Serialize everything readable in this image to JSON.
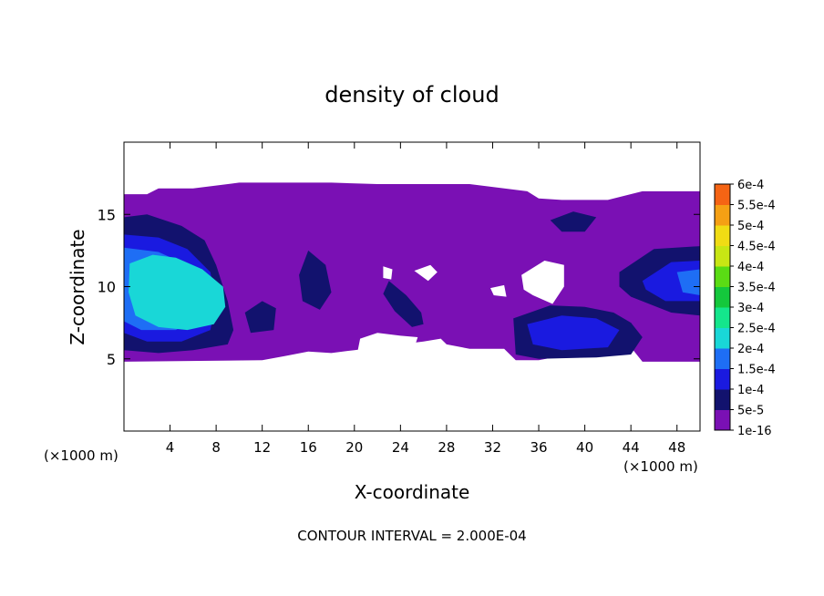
{
  "chart_data": {
    "type": "heatmap",
    "title": "density of cloud",
    "xlabel": "X-coordinate",
    "ylabel": "Z-coordinate",
    "x_unit_left": "(×1000 m)",
    "x_unit_right": "(×1000 m)",
    "footer": "CONTOUR INTERVAL = 2.000E-04",
    "xlim": [
      0,
      50
    ],
    "ylim": [
      0,
      20
    ],
    "x_ticks": [
      4,
      8,
      12,
      16,
      20,
      24,
      28,
      32,
      36,
      40,
      44,
      48
    ],
    "y_ticks": [
      5,
      10,
      15
    ],
    "legend_position": "right",
    "colorbar": {
      "labels": [
        "1e-16",
        "5e-5",
        "1e-4",
        "1.5e-4",
        "2e-4",
        "2.5e-4",
        "3e-4",
        "3.5e-4",
        "4e-4",
        "4.5e-4",
        "5e-4",
        "5.5e-4",
        "6e-4"
      ],
      "colors": [
        "#7a10b4",
        "#12126e",
        "#1a1ae0",
        "#1e6ef5",
        "#19d7d7",
        "#14e68c",
        "#14c83c",
        "#5adc14",
        "#c8e614",
        "#f0dc14",
        "#f5a014",
        "#f56414",
        "#f52814",
        "#f59090"
      ]
    },
    "regions": [
      {
        "level": 0,
        "poly": [
          [
            0,
            16.4
          ],
          [
            2,
            16.4
          ],
          [
            3,
            16.8
          ],
          [
            6,
            16.8
          ],
          [
            10,
            17.2
          ],
          [
            18,
            17.2
          ],
          [
            22,
            17.1
          ],
          [
            30,
            17.1
          ],
          [
            35,
            16.6
          ],
          [
            36,
            16.1
          ],
          [
            38,
            16
          ],
          [
            42,
            16
          ],
          [
            45,
            16.6
          ],
          [
            50,
            16.6
          ],
          [
            50,
            4.8
          ],
          [
            45,
            4.8
          ],
          [
            44,
            5.8
          ],
          [
            42,
            5.8
          ],
          [
            36,
            4.9
          ],
          [
            34,
            4.9
          ],
          [
            33,
            5.7
          ],
          [
            30,
            5.7
          ],
          [
            28,
            6
          ],
          [
            27.5,
            6.4
          ],
          [
            26,
            6.2
          ],
          [
            24,
            6
          ],
          [
            20,
            5.6
          ],
          [
            18,
            5.4
          ],
          [
            16,
            5.5
          ],
          [
            14,
            5.2
          ],
          [
            12,
            4.9
          ],
          [
            0,
            4.8
          ]
        ]
      },
      {
        "level": 1,
        "poly": [
          [
            0,
            14.8
          ],
          [
            2,
            15
          ],
          [
            5,
            14.2
          ],
          [
            7,
            13.2
          ],
          [
            8,
            11.5
          ],
          [
            9,
            9
          ],
          [
            9.5,
            7
          ],
          [
            9,
            6
          ],
          [
            6,
            5.6
          ],
          [
            3,
            5.4
          ],
          [
            0,
            5.6
          ]
        ]
      },
      {
        "level": 1,
        "poly": [
          [
            33.8,
            7.8
          ],
          [
            37,
            8.7
          ],
          [
            40,
            8.6
          ],
          [
            42.5,
            8.2
          ],
          [
            44,
            7.5
          ],
          [
            45,
            6.5
          ],
          [
            44,
            5.3
          ],
          [
            41,
            5.1
          ],
          [
            36,
            5
          ],
          [
            34,
            5.3
          ]
        ]
      },
      {
        "level": 1,
        "poly": [
          [
            43,
            11
          ],
          [
            46,
            12.6
          ],
          [
            50,
            12.8
          ],
          [
            50,
            8
          ],
          [
            47.5,
            8.2
          ],
          [
            44,
            9.3
          ],
          [
            43,
            10
          ]
        ]
      },
      {
        "level": 1,
        "poly": [
          [
            23,
            10.4
          ],
          [
            24.5,
            9.4
          ],
          [
            25.8,
            8.2
          ],
          [
            26,
            7.4
          ],
          [
            25,
            7.2
          ],
          [
            23.5,
            8.3
          ],
          [
            22.5,
            9.5
          ]
        ]
      },
      {
        "level": 1,
        "poly": [
          [
            16,
            12.5
          ],
          [
            17.5,
            11.5
          ],
          [
            18,
            9.6
          ],
          [
            17,
            8.4
          ],
          [
            15.5,
            9
          ],
          [
            15.2,
            10.8
          ]
        ]
      },
      {
        "level": 1,
        "poly": [
          [
            10.5,
            8.2
          ],
          [
            12,
            9
          ],
          [
            13.2,
            8.5
          ],
          [
            13,
            7
          ],
          [
            11,
            6.8
          ]
        ]
      },
      {
        "level": 1,
        "poly": [
          [
            37,
            14.6
          ],
          [
            39,
            15.2
          ],
          [
            41,
            14.8
          ],
          [
            40,
            13.8
          ],
          [
            38,
            13.8
          ]
        ]
      },
      {
        "level": 2,
        "poly": [
          [
            0,
            13.6
          ],
          [
            3,
            13.4
          ],
          [
            5.5,
            12.6
          ],
          [
            7.5,
            11
          ],
          [
            8,
            9
          ],
          [
            7.5,
            7
          ],
          [
            5,
            6.2
          ],
          [
            2,
            6.2
          ],
          [
            0,
            6.8
          ]
        ]
      },
      {
        "level": 2,
        "poly": [
          [
            35,
            7.4
          ],
          [
            38,
            8
          ],
          [
            41,
            7.8
          ],
          [
            43,
            7
          ],
          [
            42,
            5.8
          ],
          [
            38,
            5.6
          ],
          [
            35.5,
            6
          ]
        ]
      },
      {
        "level": 2,
        "poly": [
          [
            45,
            10.4
          ],
          [
            47.5,
            11.7
          ],
          [
            50,
            11.8
          ],
          [
            50,
            9
          ],
          [
            47,
            9
          ],
          [
            45.3,
            9.8
          ]
        ]
      },
      {
        "level": 3,
        "poly": [
          [
            0,
            12.7
          ],
          [
            3,
            12.4
          ],
          [
            5.5,
            11.5
          ],
          [
            7,
            10
          ],
          [
            6.8,
            8
          ],
          [
            4.5,
            7
          ],
          [
            1.5,
            7
          ],
          [
            0,
            7.6
          ]
        ]
      },
      {
        "level": 3,
        "poly": [
          [
            48,
            11
          ],
          [
            50,
            11.2
          ],
          [
            50,
            9.4
          ],
          [
            48.5,
            9.6
          ]
        ]
      },
      {
        "level": 4,
        "poly": [
          [
            0.5,
            11.6
          ],
          [
            2.5,
            12.2
          ],
          [
            4.5,
            12
          ],
          [
            6.8,
            11.2
          ],
          [
            8.6,
            10
          ],
          [
            8.8,
            8.6
          ],
          [
            7.8,
            7.4
          ],
          [
            5.5,
            7
          ],
          [
            3,
            7.2
          ],
          [
            1,
            8
          ],
          [
            0.4,
            9.6
          ]
        ]
      }
    ],
    "clear_holes": [
      [
        [
          34.5,
          10.8
        ],
        [
          36.5,
          11.8
        ],
        [
          38.2,
          11.5
        ],
        [
          38.2,
          10
        ],
        [
          37.2,
          8.8
        ],
        [
          35.5,
          9.4
        ],
        [
          34.7,
          9.8
        ]
      ],
      [
        [
          20.5,
          6.4
        ],
        [
          22,
          6.8
        ],
        [
          24,
          6.6
        ],
        [
          25.5,
          6.5
        ],
        [
          25,
          5.3
        ],
        [
          23.5,
          4.8
        ],
        [
          21.5,
          5
        ],
        [
          20.3,
          5.6
        ]
      ],
      [
        [
          25.2,
          11.1
        ],
        [
          26.6,
          11.5
        ],
        [
          27.2,
          11
        ],
        [
          26.4,
          10.4
        ]
      ],
      [
        [
          22.5,
          11.4
        ],
        [
          23.3,
          11.2
        ],
        [
          23.2,
          10.5
        ],
        [
          22.5,
          10.6
        ]
      ],
      [
        [
          31.8,
          9.9
        ],
        [
          33,
          10.1
        ],
        [
          33.2,
          9.3
        ],
        [
          32.1,
          9.4
        ]
      ]
    ]
  }
}
